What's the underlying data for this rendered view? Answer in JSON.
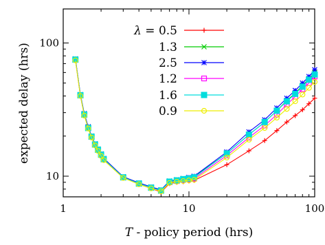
{
  "chart_data": {
    "type": "line",
    "xlabel_var": "T",
    "xlabel": " - policy period (hrs)",
    "ylabel": "expected delay (hrs)",
    "xscale": "log",
    "yscale": "log",
    "xlim": [
      1,
      100
    ],
    "ylim": [
      7,
      180
    ],
    "xticks": [
      1,
      10,
      100
    ],
    "xtick_labels": [
      "1",
      "10",
      "100"
    ],
    "yticks": [
      10,
      100
    ],
    "ytick_labels": [
      "10",
      "100"
    ],
    "grid": false,
    "legend_placement": "top-right",
    "legend_var": "λ",
    "legend_eq": " = ",
    "x": [
      1.25,
      1.37,
      1.47,
      1.58,
      1.68,
      1.79,
      1.89,
      2.0,
      2.1,
      3.0,
      4.0,
      5.0,
      6.0,
      7.0,
      8.0,
      9.0,
      10.0,
      11.0,
      20.0,
      30.0,
      40.0,
      50.0,
      60.0,
      70.0,
      80.0,
      90.0,
      100.0
    ],
    "series": [
      {
        "name": "0.5",
        "color": "#ff0000",
        "marker": "plus",
        "values": [
          75,
          40,
          29,
          23,
          19.5,
          17,
          15.5,
          14.2,
          13.2,
          9.8,
          8.7,
          8.1,
          7.6,
          8.8,
          9.0,
          9.1,
          9.2,
          9.3,
          12.2,
          15.5,
          18.5,
          22,
          25.5,
          28.5,
          31.5,
          35,
          38.5
        ]
      },
      {
        "name": "1.3",
        "color": "#00cc00",
        "marker": "x",
        "values": [
          76,
          41,
          29.5,
          23.5,
          20,
          17.5,
          16,
          14.7,
          13.6,
          9.9,
          8.9,
          8.3,
          7.9,
          9.2,
          9.4,
          9.6,
          9.7,
          9.9,
          14.8,
          20.5,
          25.5,
          31,
          37,
          42,
          48,
          54,
          60
        ]
      },
      {
        "name": "2.5",
        "color": "#0000ff",
        "marker": "star",
        "values": [
          76,
          41,
          29.5,
          23.5,
          20,
          17.5,
          16,
          14.7,
          13.6,
          9.9,
          8.9,
          8.3,
          7.9,
          9.2,
          9.4,
          9.6,
          9.8,
          10.0,
          15.2,
          21.5,
          26.5,
          32.5,
          38.5,
          44,
          50,
          56,
          63
        ]
      },
      {
        "name": "1.2",
        "color": "#ff00ff",
        "marker": "square",
        "values": [
          75,
          40.5,
          29,
          23,
          19.8,
          17.3,
          15.8,
          14.5,
          13.4,
          9.8,
          8.8,
          8.2,
          7.8,
          9.0,
          9.2,
          9.4,
          9.5,
          9.6,
          14.3,
          19.5,
          24,
          29,
          34.5,
          39.5,
          45,
          50,
          56
        ]
      },
      {
        "name": "1.6",
        "color": "#00dddd",
        "marker": "filled-square",
        "values": [
          75,
          40.5,
          29,
          23,
          19.8,
          17.3,
          15.8,
          14.5,
          13.4,
          9.8,
          8.8,
          8.2,
          7.8,
          9.1,
          9.3,
          9.5,
          9.6,
          9.8,
          14.8,
          20.5,
          25.5,
          31,
          36.5,
          41.5,
          47,
          53,
          58
        ]
      },
      {
        "name": "0.9",
        "color": "#eeee00",
        "marker": "circle",
        "values": [
          74,
          40,
          28.5,
          22.8,
          19.5,
          17,
          15.5,
          14.2,
          13.2,
          9.7,
          8.7,
          8.1,
          7.7,
          8.9,
          9.1,
          9.2,
          9.3,
          9.4,
          13.8,
          18.8,
          23,
          27.5,
          32,
          36.5,
          41,
          46,
          51
        ]
      }
    ]
  }
}
